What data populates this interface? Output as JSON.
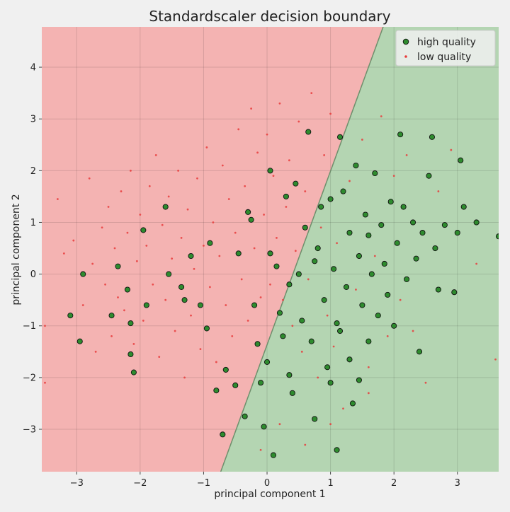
{
  "chart_data": {
    "type": "scatter",
    "title": "Standardscaler decision boundary",
    "xlabel": "principal component 1",
    "ylabel": "principal component 2",
    "xlim": [
      -3.55,
      3.65
    ],
    "ylim": [
      -3.82,
      4.78
    ],
    "xticks": [
      -3,
      -2,
      -1,
      0,
      1,
      2,
      3
    ],
    "yticks": [
      -3,
      -2,
      -1,
      0,
      1,
      2,
      3,
      4
    ],
    "grid": true,
    "legend_position": "top-right",
    "decision_boundary": {
      "line": [
        [
          -0.73,
          -3.82
        ],
        [
          1.83,
          4.78
        ]
      ],
      "regions": [
        {
          "label": "low quality",
          "side": "left",
          "color": "#f4b3b2"
        },
        {
          "label": "high quality",
          "side": "right",
          "color": "#b4d5b2"
        }
      ]
    },
    "series": [
      {
        "name": "high quality",
        "marker": "circle",
        "color": "#2e8b2e",
        "edge_color": "#111111",
        "points": [
          [
            -2.9,
            0.0
          ],
          [
            -3.1,
            -0.8
          ],
          [
            -2.95,
            -1.3
          ],
          [
            -2.45,
            -0.8
          ],
          [
            -2.35,
            0.15
          ],
          [
            -2.2,
            -0.3
          ],
          [
            -2.15,
            -0.95
          ],
          [
            -2.15,
            -1.55
          ],
          [
            -2.1,
            -1.9
          ],
          [
            -1.95,
            0.85
          ],
          [
            -1.9,
            -0.6
          ],
          [
            -1.6,
            1.3
          ],
          [
            -1.55,
            0.0
          ],
          [
            -1.35,
            -0.25
          ],
          [
            -1.3,
            -0.5
          ],
          [
            -1.2,
            0.35
          ],
          [
            -1.05,
            -0.6
          ],
          [
            -0.95,
            -1.05
          ],
          [
            -0.9,
            0.6
          ],
          [
            -0.8,
            -2.25
          ],
          [
            -0.7,
            -3.1
          ],
          [
            -0.65,
            -1.85
          ],
          [
            -0.5,
            -2.15
          ],
          [
            -0.45,
            0.4
          ],
          [
            -0.35,
            -2.75
          ],
          [
            -0.3,
            1.2
          ],
          [
            -0.25,
            1.05
          ],
          [
            -0.2,
            -0.6
          ],
          [
            -0.15,
            -1.35
          ],
          [
            -0.1,
            -2.1
          ],
          [
            -0.05,
            -2.95
          ],
          [
            0.0,
            -1.7
          ],
          [
            0.05,
            0.4
          ],
          [
            0.05,
            2.0
          ],
          [
            0.1,
            -3.5
          ],
          [
            0.15,
            0.15
          ],
          [
            0.2,
            -0.75
          ],
          [
            0.25,
            -1.2
          ],
          [
            0.3,
            1.5
          ],
          [
            0.35,
            -1.95
          ],
          [
            0.4,
            -2.3
          ],
          [
            0.45,
            1.75
          ],
          [
            0.5,
            0.0
          ],
          [
            0.55,
            -0.9
          ],
          [
            0.6,
            0.9
          ],
          [
            0.65,
            2.75
          ],
          [
            0.7,
            -1.3
          ],
          [
            0.75,
            -2.8
          ],
          [
            0.8,
            0.5
          ],
          [
            0.85,
            1.3
          ],
          [
            0.9,
            -0.5
          ],
          [
            0.95,
            -1.8
          ],
          [
            1.0,
            1.45
          ],
          [
            1.0,
            -2.1
          ],
          [
            1.05,
            0.1
          ],
          [
            1.1,
            -0.95
          ],
          [
            1.1,
            -3.4
          ],
          [
            1.15,
            2.65
          ],
          [
            1.2,
            1.6
          ],
          [
            1.25,
            -0.25
          ],
          [
            1.3,
            0.8
          ],
          [
            1.3,
            -1.65
          ],
          [
            1.35,
            -2.5
          ],
          [
            1.4,
            2.1
          ],
          [
            1.45,
            0.35
          ],
          [
            1.5,
            -0.6
          ],
          [
            1.55,
            1.15
          ],
          [
            1.6,
            -1.3
          ],
          [
            1.65,
            0.0
          ],
          [
            1.7,
            1.95
          ],
          [
            1.75,
            -0.8
          ],
          [
            1.8,
            0.95
          ],
          [
            1.85,
            0.2
          ],
          [
            1.9,
            -0.4
          ],
          [
            1.95,
            1.4
          ],
          [
            2.0,
            -1.0
          ],
          [
            2.05,
            0.6
          ],
          [
            2.1,
            2.7
          ],
          [
            2.15,
            1.3
          ],
          [
            2.2,
            -0.1
          ],
          [
            2.3,
            1.0
          ],
          [
            2.35,
            0.3
          ],
          [
            2.4,
            -1.5
          ],
          [
            2.45,
            0.8
          ],
          [
            2.55,
            1.9
          ],
          [
            2.6,
            2.65
          ],
          [
            2.65,
            0.5
          ],
          [
            2.7,
            -0.3
          ],
          [
            2.8,
            0.95
          ],
          [
            2.95,
            -0.35
          ],
          [
            3.0,
            0.8
          ],
          [
            3.05,
            2.2
          ],
          [
            3.1,
            1.3
          ],
          [
            3.3,
            1.0
          ],
          [
            3.65,
            0.73
          ],
          [
            1.15,
            -1.1
          ],
          [
            1.45,
            -2.05
          ],
          [
            0.35,
            -0.2
          ],
          [
            0.75,
            0.25
          ],
          [
            1.6,
            0.75
          ]
        ]
      },
      {
        "name": "low quality",
        "marker": "dot",
        "color": "#e83c3c",
        "points": [
          [
            -3.5,
            -1.0
          ],
          [
            -3.3,
            1.45
          ],
          [
            -3.2,
            0.4
          ],
          [
            -3.05,
            0.65
          ],
          [
            -2.9,
            -0.6
          ],
          [
            -2.8,
            1.85
          ],
          [
            -2.75,
            0.2
          ],
          [
            -2.7,
            -1.5
          ],
          [
            -2.6,
            0.9
          ],
          [
            -2.55,
            -0.2
          ],
          [
            -2.5,
            1.3
          ],
          [
            -2.45,
            -1.2
          ],
          [
            -2.4,
            0.5
          ],
          [
            -2.35,
            -0.45
          ],
          [
            -2.3,
            1.6
          ],
          [
            -2.25,
            -0.7
          ],
          [
            -2.2,
            0.8
          ],
          [
            -2.15,
            2.0
          ],
          [
            -2.1,
            -1.35
          ],
          [
            -2.05,
            0.25
          ],
          [
            -2.0,
            1.15
          ],
          [
            -1.95,
            -0.9
          ],
          [
            -1.9,
            0.55
          ],
          [
            -1.85,
            1.7
          ],
          [
            -1.8,
            -0.2
          ],
          [
            -1.75,
            2.3
          ],
          [
            -1.7,
            -1.6
          ],
          [
            -1.65,
            0.95
          ],
          [
            -1.6,
            -0.5
          ],
          [
            -1.55,
            1.5
          ],
          [
            -1.5,
            0.3
          ],
          [
            -1.45,
            -1.1
          ],
          [
            -1.4,
            2.0
          ],
          [
            -1.35,
            0.7
          ],
          [
            -1.3,
            -2.0
          ],
          [
            -1.25,
            1.25
          ],
          [
            -1.2,
            -0.8
          ],
          [
            -1.15,
            0.1
          ],
          [
            -1.1,
            1.85
          ],
          [
            -1.05,
            -1.45
          ],
          [
            -1.0,
            0.55
          ],
          [
            -0.95,
            2.45
          ],
          [
            -0.9,
            -0.25
          ],
          [
            -0.85,
            1.0
          ],
          [
            -0.8,
            -1.7
          ],
          [
            -0.75,
            0.35
          ],
          [
            -0.7,
            2.1
          ],
          [
            -0.65,
            -0.6
          ],
          [
            -0.6,
            1.45
          ],
          [
            -0.55,
            -1.2
          ],
          [
            -0.5,
            0.8
          ],
          [
            -0.45,
            2.8
          ],
          [
            -0.4,
            -0.1
          ],
          [
            -0.35,
            1.7
          ],
          [
            -0.3,
            -0.9
          ],
          [
            -0.25,
            3.2
          ],
          [
            -0.2,
            0.5
          ],
          [
            -0.15,
            2.35
          ],
          [
            -0.1,
            -0.45
          ],
          [
            -0.05,
            1.15
          ],
          [
            0.0,
            2.7
          ],
          [
            0.05,
            -0.2
          ],
          [
            0.1,
            1.9
          ],
          [
            0.15,
            0.7
          ],
          [
            0.2,
            3.3
          ],
          [
            0.25,
            -0.5
          ],
          [
            0.3,
            1.3
          ],
          [
            0.35,
            2.2
          ],
          [
            0.4,
            -1.0
          ],
          [
            0.45,
            0.45
          ],
          [
            0.5,
            2.95
          ],
          [
            0.55,
            -1.5
          ],
          [
            0.6,
            1.6
          ],
          [
            0.65,
            -0.1
          ],
          [
            0.7,
            3.5
          ],
          [
            0.8,
            -2.0
          ],
          [
            0.85,
            0.9
          ],
          [
            0.9,
            2.3
          ],
          [
            0.95,
            -0.8
          ],
          [
            1.0,
            3.1
          ],
          [
            1.05,
            -1.4
          ],
          [
            1.1,
            0.6
          ],
          [
            1.2,
            -2.6
          ],
          [
            1.3,
            1.8
          ],
          [
            1.4,
            -0.3
          ],
          [
            1.5,
            2.6
          ],
          [
            1.6,
            -1.8
          ],
          [
            1.7,
            0.35
          ],
          [
            1.8,
            3.05
          ],
          [
            1.9,
            -1.2
          ],
          [
            2.0,
            1.9
          ],
          [
            2.1,
            -0.5
          ],
          [
            2.2,
            2.3
          ],
          [
            2.3,
            -1.1
          ],
          [
            2.5,
            -2.1
          ],
          [
            2.7,
            1.6
          ],
          [
            2.9,
            2.4
          ],
          [
            3.3,
            0.2
          ],
          [
            3.6,
            -1.65
          ],
          [
            -3.5,
            -2.1
          ],
          [
            0.2,
            -2.9
          ],
          [
            0.6,
            -3.3
          ],
          [
            -0.1,
            -3.4
          ],
          [
            1.0,
            -2.9
          ],
          [
            1.6,
            -2.3
          ]
        ]
      }
    ]
  }
}
